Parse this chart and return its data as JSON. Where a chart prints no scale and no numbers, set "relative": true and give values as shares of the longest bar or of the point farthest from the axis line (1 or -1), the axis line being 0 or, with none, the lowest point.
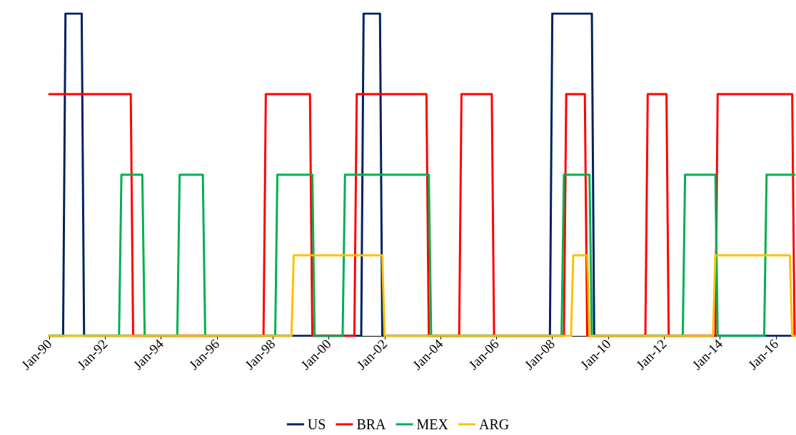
{
  "chart_data": {
    "type": "line",
    "relative": true,
    "grid": false,
    "legend": "bottom",
    "marker": "none",
    "line_style": "solid",
    "xlim": [
      "1990-01",
      "2016-09"
    ],
    "xticks": [
      {
        "value": "1990-01",
        "label": "Jan-90"
      },
      {
        "value": "1992-01",
        "label": "Jan-92"
      },
      {
        "value": "1994-01",
        "label": "Jan-94"
      },
      {
        "value": "1996-01",
        "label": "Jan-96"
      },
      {
        "value": "1998-01",
        "label": "Jan-98"
      },
      {
        "value": "2000-01",
        "label": "Jan-00"
      },
      {
        "value": "2002-01",
        "label": "Jan-02"
      },
      {
        "value": "2004-01",
        "label": "Jan-04"
      },
      {
        "value": "2006-01",
        "label": "Jan-06"
      },
      {
        "value": "2008-01",
        "label": "Jan-08"
      },
      {
        "value": "2010-01",
        "label": "Jan-10"
      },
      {
        "value": "2012-01",
        "label": "Jan-12"
      },
      {
        "value": "2014-01",
        "label": "Jan-14"
      },
      {
        "value": "2016-01",
        "label": "Jan-16"
      }
    ],
    "series": [
      {
        "name": "US",
        "color": "#002060",
        "x": [
          "1990-01",
          "1990-07",
          "1990-08",
          "1991-03",
          "1991-04",
          "2001-03",
          "2001-04",
          "2001-11",
          "2001-12",
          "2007-12",
          "2008-01",
          "2009-06",
          "2009-07",
          "2016-09"
        ],
        "values": [
          0,
          0,
          1,
          1,
          0,
          0,
          1,
          1,
          0,
          0,
          1,
          1,
          0,
          0
        ]
      },
      {
        "name": "BRA",
        "color": "#ff0000",
        "x": [
          "1990-01",
          "1992-12",
          "1993-01",
          "1997-09",
          "1997-10",
          "1999-05",
          "1999-06",
          "2000-12",
          "2001-01",
          "2003-07",
          "2003-08",
          "2004-09",
          "2004-10",
          "2005-11",
          "2005-12",
          "2008-06",
          "2008-07",
          "2009-03",
          "2009-04",
          "2011-05",
          "2011-06",
          "2012-02",
          "2012-03",
          "2013-11",
          "2013-12",
          "2016-08",
          "2016-09"
        ],
        "values": [
          0.75,
          0.75,
          0,
          0,
          0.75,
          0.75,
          0,
          0,
          0.75,
          0.75,
          0,
          0,
          0.75,
          0.75,
          0,
          0,
          0.75,
          0.75,
          0,
          0,
          0.75,
          0.75,
          0,
          0,
          0.75,
          0.75,
          0
        ]
      },
      {
        "name": "MEX",
        "color": "#00b050",
        "x": [
          "1990-01",
          "1992-07",
          "1992-08",
          "1993-05",
          "1993-06",
          "1994-08",
          "1994-09",
          "1995-07",
          "1995-08",
          "1998-02",
          "1998-03",
          "1999-06",
          "1999-07",
          "2000-07",
          "2000-08",
          "2003-08",
          "2003-09",
          "2008-05",
          "2008-06",
          "2009-05",
          "2009-06",
          "2012-09",
          "2012-10",
          "2013-11",
          "2013-12",
          "2015-08",
          "2015-09",
          "2016-09"
        ],
        "values": [
          0,
          0,
          0.5,
          0.5,
          0,
          0,
          0.5,
          0.5,
          0,
          0,
          0.5,
          0.5,
          0,
          0,
          0.5,
          0.5,
          0,
          0,
          0.5,
          0.5,
          0,
          0,
          0.5,
          0.5,
          0,
          0,
          0.5,
          0.5
        ]
      },
      {
        "name": "ARG",
        "color": "#ffc000",
        "x": [
          "1990-01",
          "1998-09",
          "1998-10",
          "2001-12",
          "2002-01",
          "2008-09",
          "2008-10",
          "2009-04",
          "2009-05",
          "2013-10",
          "2013-11",
          "2016-07",
          "2016-08",
          "2016-09"
        ],
        "values": [
          0,
          0,
          0.25,
          0.25,
          0,
          0,
          0.25,
          0.25,
          0,
          0,
          0.25,
          0.25,
          0,
          0
        ]
      }
    ]
  }
}
